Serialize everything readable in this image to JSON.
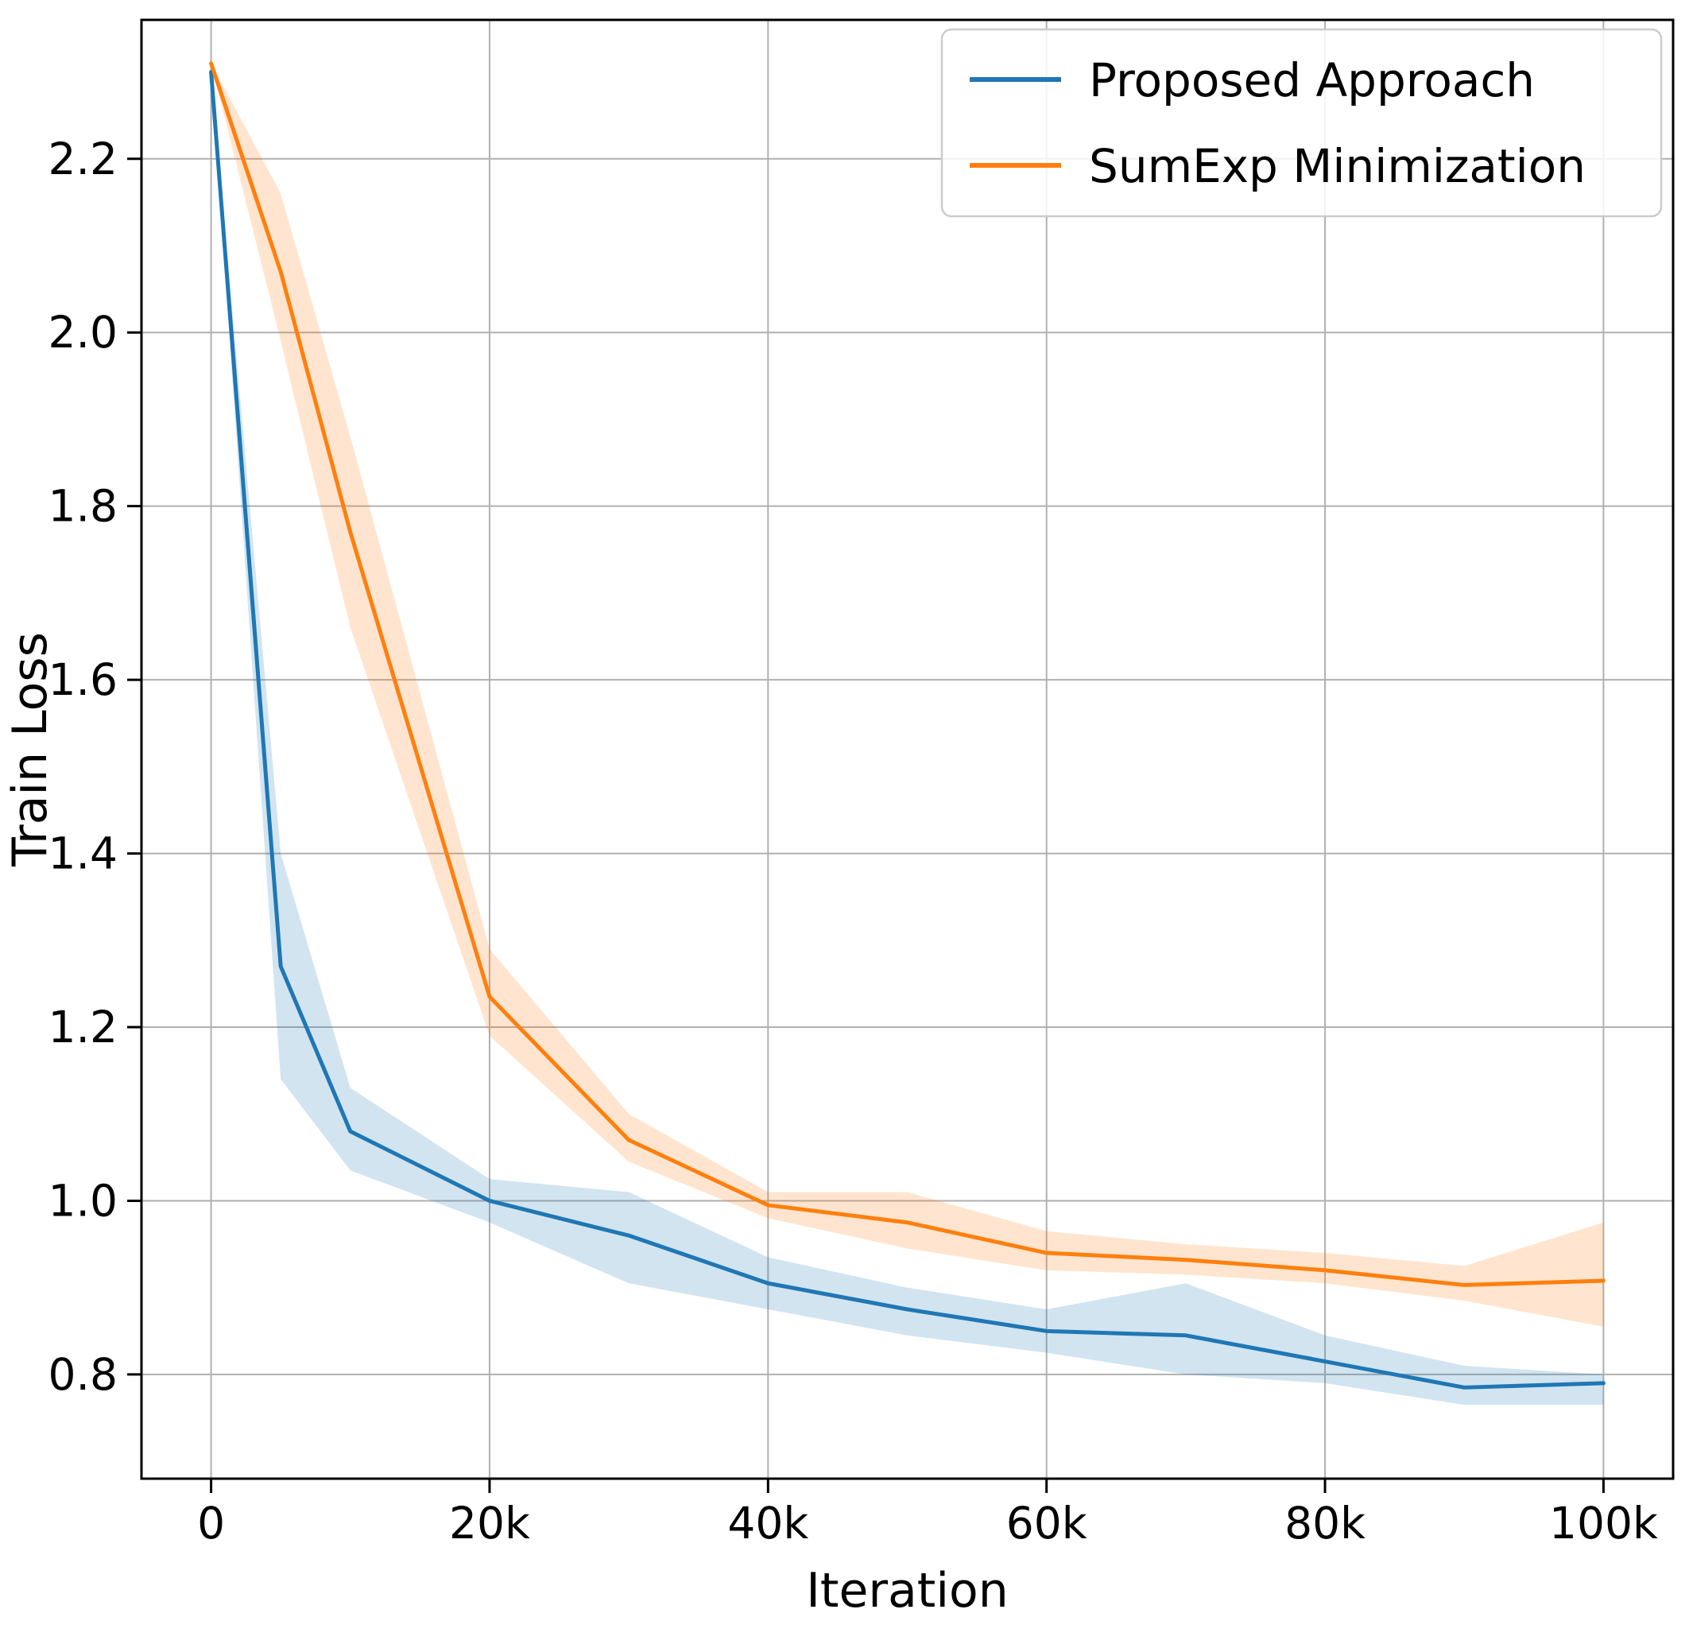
{
  "chart_data": {
    "type": "line",
    "title": "",
    "xlabel": "Iteration",
    "ylabel": "Train Loss",
    "xlim": [
      -5000,
      105000
    ],
    "ylim": [
      0.68,
      2.36
    ],
    "grid": true,
    "legend_position": "upper right",
    "x_ticks": [
      {
        "v": 0,
        "label": "0"
      },
      {
        "v": 20000,
        "label": "20k"
      },
      {
        "v": 40000,
        "label": "40k"
      },
      {
        "v": 60000,
        "label": "60k"
      },
      {
        "v": 80000,
        "label": "80k"
      },
      {
        "v": 100000,
        "label": "100k"
      }
    ],
    "y_ticks": [
      {
        "v": 0.8,
        "label": "0.8"
      },
      {
        "v": 1.0,
        "label": "1.0"
      },
      {
        "v": 1.2,
        "label": "1.2"
      },
      {
        "v": 1.4,
        "label": "1.4"
      },
      {
        "v": 1.6,
        "label": "1.6"
      },
      {
        "v": 1.8,
        "label": "1.8"
      },
      {
        "v": 2.0,
        "label": "2.0"
      },
      {
        "v": 2.2,
        "label": "2.2"
      }
    ],
    "x": [
      0,
      5000,
      10000,
      20000,
      30000,
      40000,
      50000,
      60000,
      70000,
      80000,
      90000,
      100000
    ],
    "series": [
      {
        "name": "Proposed Approach",
        "color": "#1f77b4",
        "band_opacity": 0.2,
        "values": [
          2.3,
          1.27,
          1.08,
          1.0,
          0.96,
          0.905,
          0.875,
          0.85,
          0.845,
          0.815,
          0.785,
          0.79
        ],
        "band_low": [
          2.3,
          1.14,
          1.035,
          0.975,
          0.905,
          0.875,
          0.845,
          0.825,
          0.8,
          0.79,
          0.765,
          0.765
        ],
        "band_high": [
          2.3,
          1.4,
          1.13,
          1.025,
          1.01,
          0.935,
          0.9,
          0.875,
          0.905,
          0.845,
          0.81,
          0.8
        ]
      },
      {
        "name": "SumExp Minimization",
        "color": "#ff7f0e",
        "band_opacity": 0.2,
        "values": [
          2.31,
          2.07,
          1.77,
          1.235,
          1.07,
          0.995,
          0.975,
          0.94,
          0.932,
          0.92,
          0.903,
          0.908
        ],
        "band_low": [
          2.31,
          1.99,
          1.66,
          1.19,
          1.045,
          0.98,
          0.945,
          0.92,
          0.915,
          0.905,
          0.885,
          0.855
        ],
        "band_high": [
          2.31,
          2.16,
          1.88,
          1.29,
          1.1,
          1.01,
          1.01,
          0.965,
          0.95,
          0.94,
          0.925,
          0.975
        ]
      }
    ],
    "style": {
      "grid_color": "#b0b0b0",
      "spine_color": "#000000",
      "legend_border_color": "#cccccc",
      "background": "#ffffff"
    }
  }
}
